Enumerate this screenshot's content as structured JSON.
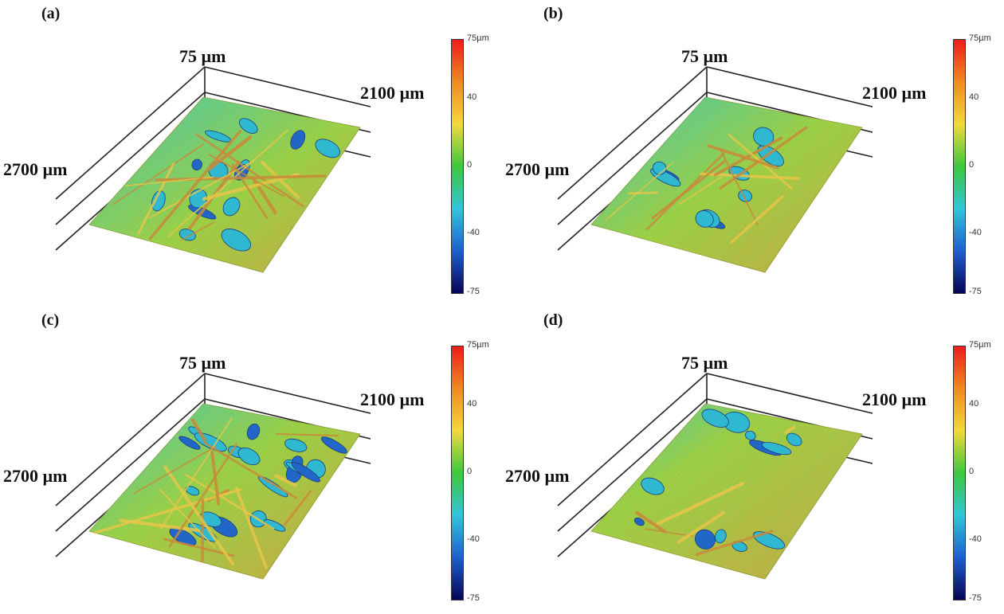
{
  "figure": {
    "panels": [
      {
        "id": "a",
        "label": "(a)",
        "z_range_label": "75 µm",
        "width_label": "2100 µm",
        "length_label": "2700 µm",
        "colorbar": {
          "max_label": "75µm",
          "ticks": [
            "40",
            "0",
            "-40"
          ],
          "min_label": "-75"
        },
        "surface": {
          "pores": 14,
          "fibers": 16,
          "level": 0.55
        }
      },
      {
        "id": "b",
        "label": "(b)",
        "z_range_label": "75 µm",
        "width_label": "2100 µm",
        "length_label": "2700 µm",
        "colorbar": {
          "max_label": "75µm",
          "ticks": [
            "40",
            "0",
            "-40"
          ],
          "min_label": "-75"
        },
        "surface": {
          "pores": 10,
          "fibers": 12,
          "level": 0.5
        }
      },
      {
        "id": "c",
        "label": "(c)",
        "z_range_label": "75 µm",
        "width_label": "2100 µm",
        "length_label": "2700 µm",
        "colorbar": {
          "max_label": "75µm",
          "ticks": [
            "40",
            "0",
            "-40"
          ],
          "min_label": "-75"
        },
        "surface": {
          "pores": 22,
          "fibers": 18,
          "level": 0.45
        }
      },
      {
        "id": "d",
        "label": "(d)",
        "z_range_label": "75 µm",
        "width_label": "2100 µm",
        "length_label": "2700 µm",
        "colorbar": {
          "max_label": "75µm",
          "ticks": [
            "40",
            "0",
            "-40"
          ],
          "min_label": "-75"
        },
        "surface": {
          "pores": 12,
          "fibers": 6,
          "level": 0.35
        }
      }
    ],
    "colormap": [
      "#ee1c1c",
      "#f08a20",
      "#f2d93a",
      "#3cc83c",
      "#2fc6d8",
      "#1f5fd0",
      "#050555"
    ]
  }
}
